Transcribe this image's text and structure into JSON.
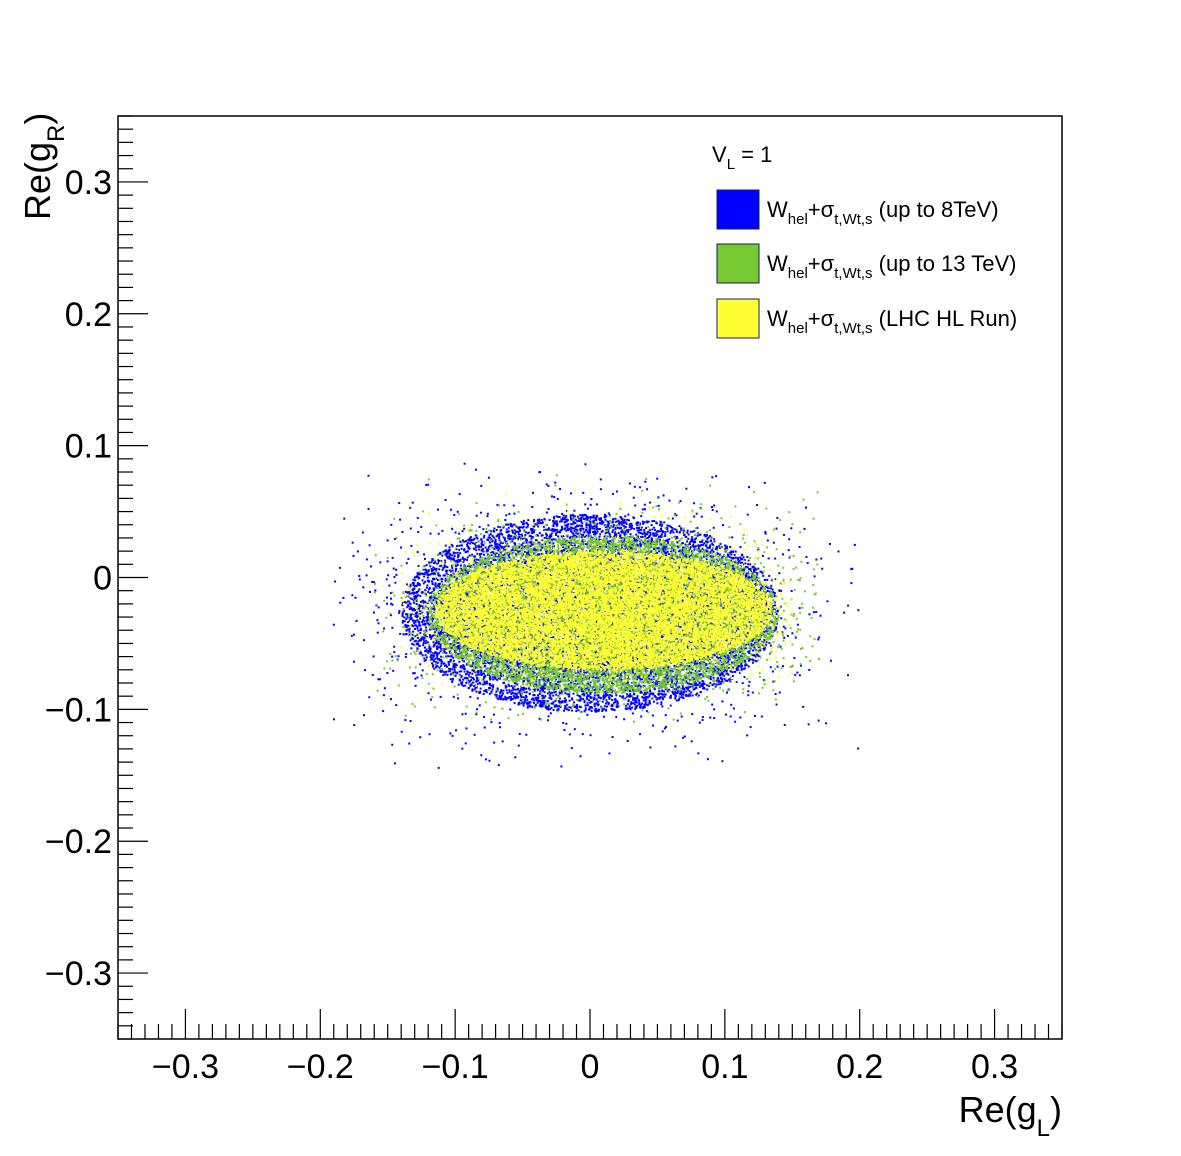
{
  "chart_data": {
    "type": "scatter",
    "xlabel": {
      "base": "Re(g",
      "sub": "L",
      "close": ")"
    },
    "ylabel": {
      "base": "Re(g",
      "sub": "R",
      "close": ")"
    },
    "xlim": [
      -0.35,
      0.35
    ],
    "ylim": [
      -0.35,
      0.35
    ],
    "x_ticks": [
      -0.3,
      -0.2,
      -0.1,
      0,
      0.1,
      0.2,
      0.3
    ],
    "x_tick_labels": [
      "−0.3",
      "−0.2",
      "−0.1",
      "0",
      "0.1",
      "0.2",
      "0.3"
    ],
    "y_ticks": [
      0.3,
      0.2,
      0.1,
      0,
      -0.1,
      -0.2,
      -0.3
    ],
    "y_tick_labels": [
      "0.3",
      "0.2",
      "0.1",
      "0",
      "−0.1",
      "−0.2",
      "−0.3"
    ],
    "grid": false,
    "legend_position": "top-right",
    "legend_header": {
      "base": "V",
      "sub": "L",
      "rest": " = 1"
    },
    "series": [
      {
        "name": "W_hel+σ_t,Wt,s (up to 8TeV)",
        "label_base": "W",
        "label_sub1": "hel",
        "label_mid": "+σ",
        "label_sub2": "t,Wt,s",
        "label_rest": " (up to 8TeV)",
        "color": "#0000ff",
        "region": {
          "center_x": 0.0,
          "center_y": -0.027,
          "half_width_x": 0.14,
          "half_width_y": 0.075,
          "outer_x_range": [
            -0.19,
            0.2
          ],
          "outer_y_range": [
            -0.145,
            0.088
          ]
        }
      },
      {
        "name": "W_hel+σ_t,Wt,s (up to 13 TeV)",
        "label_base": "W",
        "label_sub1": "hel",
        "label_mid": "+σ",
        "label_sub2": "t,Wt,s",
        "label_rest": " (up to 13 TeV)",
        "color": "#77c932",
        "region": {
          "center_x": 0.01,
          "center_y": -0.028,
          "half_width_x": 0.13,
          "half_width_y": 0.06,
          "outer_x_range": [
            -0.16,
            0.17
          ],
          "outer_y_range": [
            -0.11,
            0.08
          ]
        }
      },
      {
        "name": "W_hel+σ_t,Wt,s (LHC HL Run)",
        "label_base": "W",
        "label_sub1": "hel",
        "label_mid": "+σ",
        "label_sub2": "t,Wt,s",
        "label_rest": " (LHC HL Run)",
        "color": "#ffff33",
        "region": {
          "center_x": 0.01,
          "center_y": -0.025,
          "half_width_x": 0.125,
          "half_width_y": 0.045,
          "outer_x_range": [
            -0.14,
            0.15
          ],
          "outer_y_range": [
            -0.085,
            0.068
          ]
        }
      }
    ]
  }
}
